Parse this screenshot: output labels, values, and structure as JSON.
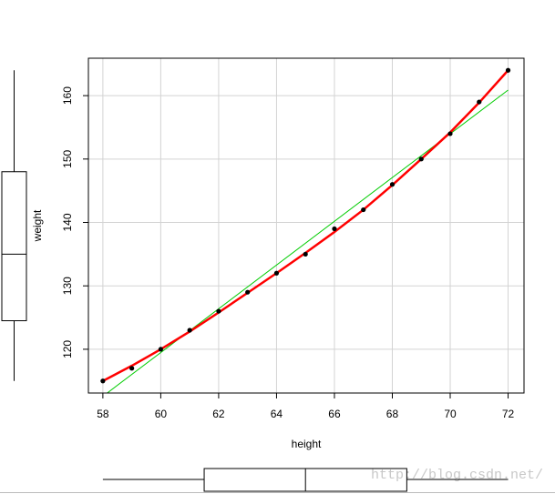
{
  "chart_data": {
    "type": "scatter",
    "x_label": "height",
    "y_label": "weight",
    "x": [
      58,
      59,
      60,
      61,
      62,
      63,
      64,
      65,
      66,
      67,
      68,
      69,
      70,
      71,
      72
    ],
    "series": [
      {
        "color": "#000000",
        "values": [
          115,
          117,
          120,
          123,
          126,
          129,
          132,
          135,
          139,
          142,
          146,
          150,
          154,
          159,
          164
        ]
      }
    ],
    "smooth": {
      "color": "#ff0000",
      "values": [
        115,
        117.4,
        120,
        122.8,
        125.8,
        128.9,
        132,
        135.2,
        138.5,
        142,
        145.9,
        150,
        154.2,
        158.9,
        164
      ]
    },
    "fit": {
      "color": "#00cc00",
      "x": [
        58,
        72
      ],
      "values": [
        112.58,
        160.88
      ]
    },
    "xlim": [
      57.5,
      72.55
    ],
    "ylim": [
      113.1,
      165.9
    ],
    "xticks": [
      58,
      60,
      62,
      64,
      66,
      68,
      70,
      72
    ],
    "yticks": [
      120,
      130,
      140,
      150,
      160
    ],
    "grid": true,
    "y_boxplot": {
      "min": 115,
      "q1": 124.5,
      "median": 135,
      "q3": 148,
      "max": 164
    },
    "x_boxplot": {
      "min": 58,
      "q1": 61.5,
      "median": 65,
      "q3": 68.5,
      "max": 72
    }
  },
  "watermark": "http://blog.csdn.net/"
}
